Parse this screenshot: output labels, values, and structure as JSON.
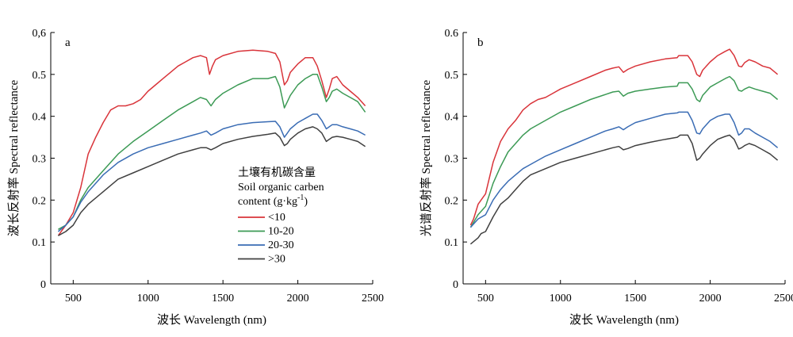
{
  "chart_data": [
    {
      "type": "line",
      "panel_label": "a",
      "xlabel": "波长 Wavelength (nm)",
      "ylabel": "波长反射率 Spectral reflectance",
      "xlim": [
        350,
        2500
      ],
      "ylim": [
        0,
        0.6
      ],
      "xticks": [
        500,
        1000,
        1500,
        2000,
        2500
      ],
      "yticks": [
        0,
        0.1,
        0.2,
        0.3,
        0.4,
        0.5,
        0.6
      ],
      "xtick_labels": [
        "500",
        "1000",
        "1500",
        "2000",
        "2500"
      ],
      "ytick_labels": [
        "0",
        "0.1",
        "0.2",
        "0.3",
        "0.4",
        "0.5",
        "0,6"
      ],
      "grid": false,
      "legend": {
        "placement": "center",
        "title_lines": [
          "土壤有机碳含量",
          "Soil organic carben",
          "content (g·kg",
          "-1",
          ")"
        ],
        "entries": [
          "<10",
          "10-20",
          "20-30",
          ">30"
        ]
      },
      "series": [
        {
          "name": "<10",
          "color": "#d9343a",
          "x": [
            400,
            450,
            500,
            550,
            600,
            650,
            700,
            750,
            800,
            850,
            900,
            950,
            1000,
            1050,
            1100,
            1150,
            1200,
            1250,
            1300,
            1350,
            1390,
            1410,
            1430,
            1450,
            1500,
            1600,
            1700,
            1800,
            1850,
            1880,
            1910,
            1930,
            1950,
            2000,
            2050,
            2100,
            2130,
            2160,
            2190,
            2210,
            2230,
            2260,
            2300,
            2350,
            2400,
            2450
          ],
          "y": [
            0.115,
            0.14,
            0.17,
            0.23,
            0.31,
            0.35,
            0.385,
            0.415,
            0.425,
            0.425,
            0.43,
            0.44,
            0.46,
            0.475,
            0.49,
            0.505,
            0.52,
            0.53,
            0.54,
            0.545,
            0.54,
            0.5,
            0.52,
            0.535,
            0.545,
            0.555,
            0.558,
            0.555,
            0.55,
            0.53,
            0.475,
            0.485,
            0.505,
            0.525,
            0.54,
            0.54,
            0.52,
            0.485,
            0.445,
            0.465,
            0.49,
            0.495,
            0.475,
            0.46,
            0.445,
            0.425
          ]
        },
        {
          "name": "10-20",
          "color": "#3c9a55",
          "x": [
            400,
            450,
            500,
            550,
            600,
            700,
            800,
            900,
            1000,
            1100,
            1200,
            1300,
            1350,
            1390,
            1420,
            1450,
            1500,
            1600,
            1700,
            1800,
            1850,
            1880,
            1910,
            1930,
            1950,
            2000,
            2050,
            2100,
            2130,
            2160,
            2190,
            2210,
            2230,
            2260,
            2300,
            2350,
            2400,
            2450
          ],
          "y": [
            0.13,
            0.14,
            0.16,
            0.2,
            0.23,
            0.27,
            0.31,
            0.34,
            0.365,
            0.39,
            0.415,
            0.435,
            0.445,
            0.44,
            0.425,
            0.44,
            0.455,
            0.475,
            0.49,
            0.49,
            0.495,
            0.47,
            0.42,
            0.435,
            0.45,
            0.475,
            0.49,
            0.5,
            0.5,
            0.47,
            0.435,
            0.445,
            0.46,
            0.465,
            0.455,
            0.445,
            0.435,
            0.41
          ]
        },
        {
          "name": "20-30",
          "color": "#3a6cb4",
          "x": [
            400,
            450,
            500,
            550,
            600,
            700,
            800,
            900,
            1000,
            1100,
            1200,
            1300,
            1350,
            1390,
            1420,
            1450,
            1500,
            1600,
            1700,
            1800,
            1850,
            1880,
            1910,
            1930,
            1950,
            2000,
            2050,
            2100,
            2130,
            2160,
            2190,
            2210,
            2230,
            2260,
            2300,
            2350,
            2400,
            2450
          ],
          "y": [
            0.125,
            0.14,
            0.16,
            0.195,
            0.22,
            0.26,
            0.29,
            0.31,
            0.325,
            0.335,
            0.345,
            0.355,
            0.36,
            0.365,
            0.355,
            0.36,
            0.37,
            0.38,
            0.385,
            0.387,
            0.388,
            0.375,
            0.35,
            0.36,
            0.37,
            0.385,
            0.395,
            0.405,
            0.405,
            0.39,
            0.37,
            0.375,
            0.38,
            0.38,
            0.375,
            0.37,
            0.365,
            0.355
          ]
        },
        {
          "name": ">30",
          "color": "#404040",
          "x": [
            400,
            450,
            500,
            550,
            600,
            700,
            800,
            900,
            1000,
            1100,
            1200,
            1300,
            1350,
            1390,
            1420,
            1450,
            1500,
            1600,
            1700,
            1800,
            1850,
            1880,
            1910,
            1930,
            1950,
            2000,
            2050,
            2100,
            2130,
            2160,
            2190,
            2210,
            2230,
            2260,
            2300,
            2350,
            2400,
            2450
          ],
          "y": [
            0.115,
            0.125,
            0.14,
            0.17,
            0.19,
            0.22,
            0.25,
            0.265,
            0.28,
            0.295,
            0.31,
            0.32,
            0.325,
            0.325,
            0.32,
            0.325,
            0.335,
            0.345,
            0.352,
            0.357,
            0.36,
            0.35,
            0.33,
            0.335,
            0.345,
            0.36,
            0.37,
            0.375,
            0.37,
            0.36,
            0.34,
            0.345,
            0.35,
            0.352,
            0.35,
            0.345,
            0.34,
            0.328
          ]
        }
      ]
    },
    {
      "type": "line",
      "panel_label": "b",
      "xlabel": "波长 Wavelength (nm)",
      "ylabel": "光谱反射率 Spectral reflectance",
      "xlim": [
        350,
        2500
      ],
      "ylim": [
        0,
        0.6
      ],
      "xticks": [
        500,
        1000,
        1500,
        2000,
        2500
      ],
      "yticks": [
        0,
        0.1,
        0.2,
        0.3,
        0.4,
        0.5,
        0.6
      ],
      "xtick_labels": [
        "500",
        "1000",
        "1500",
        "2000",
        "2500"
      ],
      "ytick_labels": [
        "0",
        "0.1",
        "0.2",
        "0.3",
        "0.4",
        "0.5",
        "0.6"
      ],
      "grid": false,
      "series": [
        {
          "name": "<10",
          "color": "#d9343a",
          "x": [
            400,
            420,
            450,
            480,
            500,
            550,
            600,
            650,
            700,
            750,
            800,
            850,
            900,
            950,
            1000,
            1100,
            1200,
            1300,
            1350,
            1390,
            1420,
            1450,
            1500,
            1600,
            1700,
            1780,
            1790,
            1850,
            1880,
            1910,
            1930,
            1950,
            2000,
            2050,
            2100,
            2130,
            2160,
            2190,
            2210,
            2230,
            2260,
            2300,
            2350,
            2400,
            2450
          ],
          "y": [
            0.14,
            0.155,
            0.19,
            0.205,
            0.215,
            0.29,
            0.34,
            0.37,
            0.39,
            0.415,
            0.43,
            0.44,
            0.445,
            0.455,
            0.465,
            0.48,
            0.495,
            0.51,
            0.515,
            0.518,
            0.505,
            0.512,
            0.52,
            0.53,
            0.537,
            0.54,
            0.545,
            0.545,
            0.53,
            0.5,
            0.495,
            0.51,
            0.53,
            0.545,
            0.555,
            0.56,
            0.545,
            0.52,
            0.518,
            0.528,
            0.535,
            0.53,
            0.52,
            0.515,
            0.5
          ]
        },
        {
          "name": "10-20",
          "color": "#3c9a55",
          "x": [
            400,
            450,
            500,
            550,
            600,
            650,
            700,
            750,
            800,
            900,
            1000,
            1100,
            1200,
            1300,
            1350,
            1390,
            1420,
            1450,
            1500,
            1600,
            1700,
            1780,
            1790,
            1850,
            1880,
            1910,
            1930,
            1950,
            2000,
            2050,
            2100,
            2130,
            2160,
            2190,
            2210,
            2230,
            2260,
            2300,
            2350,
            2400,
            2450
          ],
          "y": [
            0.135,
            0.165,
            0.185,
            0.24,
            0.28,
            0.315,
            0.335,
            0.355,
            0.37,
            0.39,
            0.41,
            0.425,
            0.44,
            0.452,
            0.458,
            0.46,
            0.448,
            0.455,
            0.46,
            0.465,
            0.47,
            0.472,
            0.48,
            0.48,
            0.465,
            0.44,
            0.435,
            0.45,
            0.47,
            0.48,
            0.49,
            0.495,
            0.485,
            0.462,
            0.46,
            0.465,
            0.47,
            0.465,
            0.46,
            0.455,
            0.44
          ]
        },
        {
          "name": "20-30",
          "color": "#3a6cb4",
          "x": [
            400,
            450,
            500,
            550,
            600,
            650,
            700,
            750,
            800,
            900,
            1000,
            1100,
            1200,
            1300,
            1350,
            1390,
            1420,
            1450,
            1500,
            1600,
            1700,
            1780,
            1790,
            1850,
            1880,
            1910,
            1930,
            1950,
            2000,
            2050,
            2100,
            2130,
            2160,
            2190,
            2210,
            2230,
            2260,
            2300,
            2350,
            2400,
            2450
          ],
          "y": [
            0.135,
            0.155,
            0.165,
            0.2,
            0.225,
            0.245,
            0.26,
            0.275,
            0.285,
            0.305,
            0.32,
            0.335,
            0.35,
            0.365,
            0.37,
            0.375,
            0.368,
            0.375,
            0.385,
            0.395,
            0.405,
            0.408,
            0.41,
            0.41,
            0.39,
            0.36,
            0.358,
            0.37,
            0.39,
            0.4,
            0.405,
            0.405,
            0.385,
            0.355,
            0.36,
            0.37,
            0.37,
            0.36,
            0.35,
            0.34,
            0.325
          ]
        },
        {
          "name": ">30",
          "color": "#404040",
          "x": [
            400,
            450,
            470,
            500,
            550,
            600,
            650,
            700,
            750,
            800,
            900,
            1000,
            1100,
            1200,
            1300,
            1350,
            1390,
            1420,
            1450,
            1500,
            1600,
            1700,
            1780,
            1800,
            1850,
            1880,
            1910,
            1930,
            1950,
            2000,
            2050,
            2100,
            2130,
            2160,
            2190,
            2210,
            2230,
            2260,
            2300,
            2350,
            2400,
            2450
          ],
          "y": [
            0.095,
            0.11,
            0.12,
            0.125,
            0.16,
            0.19,
            0.205,
            0.225,
            0.245,
            0.26,
            0.275,
            0.29,
            0.3,
            0.31,
            0.32,
            0.325,
            0.328,
            0.32,
            0.323,
            0.33,
            0.338,
            0.345,
            0.35,
            0.355,
            0.355,
            0.335,
            0.295,
            0.3,
            0.31,
            0.33,
            0.345,
            0.352,
            0.355,
            0.345,
            0.322,
            0.325,
            0.33,
            0.335,
            0.33,
            0.32,
            0.31,
            0.295
          ]
        }
      ]
    }
  ]
}
